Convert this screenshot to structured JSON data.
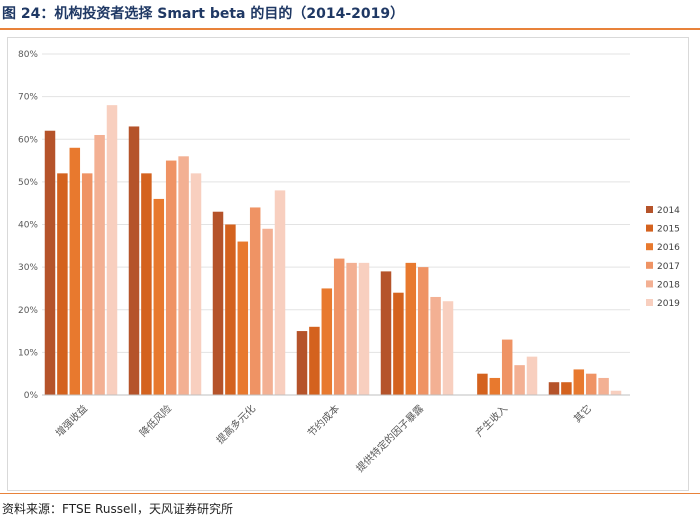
{
  "header": {
    "title": "图 24：机构投资者选择 Smart beta 的目的（2014-2019）"
  },
  "footer": {
    "source": "资料来源：FTSE Russell，天风证券研究所"
  },
  "colors": {
    "accent": "#e8823a",
    "title": "#1f3864",
    "series": [
      "#b5532a",
      "#d4621e",
      "#e8792e",
      "#ef9364",
      "#f3b093",
      "#f8cfbf"
    ]
  },
  "chart_data": {
    "type": "bar",
    "title": "",
    "xlabel": "",
    "ylabel": "",
    "ylim": [
      0,
      80
    ],
    "yticks": [
      "0%",
      "10%",
      "20%",
      "30%",
      "40%",
      "50%",
      "60%",
      "70%",
      "80%"
    ],
    "ytick_values": [
      0,
      10,
      20,
      30,
      40,
      50,
      60,
      70,
      80
    ],
    "categories": [
      "增强收益",
      "降低风险",
      "提高多元化",
      "节约成本",
      "提供特定的因子暴露",
      "产生收入",
      "其它"
    ],
    "legend_position": "right",
    "series": [
      {
        "name": "2014",
        "values": [
          62,
          63,
          43,
          15,
          29,
          0,
          3
        ]
      },
      {
        "name": "2015",
        "values": [
          52,
          52,
          40,
          16,
          24,
          5,
          3
        ]
      },
      {
        "name": "2016",
        "values": [
          58,
          46,
          36,
          25,
          31,
          4,
          6
        ]
      },
      {
        "name": "2017",
        "values": [
          52,
          55,
          44,
          32,
          30,
          13,
          5
        ]
      },
      {
        "name": "2018",
        "values": [
          61,
          56,
          39,
          31,
          23,
          7,
          4
        ]
      },
      {
        "name": "2019",
        "values": [
          68,
          52,
          48,
          31,
          22,
          9,
          1
        ]
      }
    ]
  }
}
